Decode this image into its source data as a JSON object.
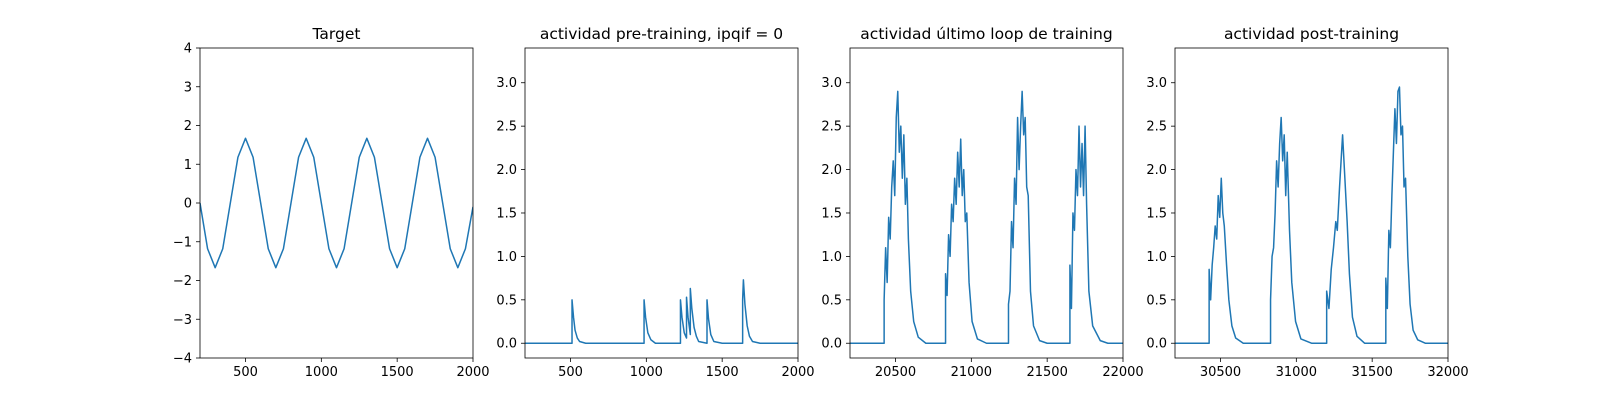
{
  "chart_data": [
    {
      "type": "line",
      "title": "Target",
      "xlabel": "",
      "ylabel": "",
      "xlim": [
        200,
        2000
      ],
      "ylim": [
        -4,
        4
      ],
      "xticks": [
        500,
        1000,
        1500,
        2000
      ],
      "yticks": [
        -4,
        -3,
        -2,
        -1,
        0,
        1,
        2,
        3,
        4
      ],
      "ytick_labels": [
        "−4",
        "−3",
        "−2",
        "−1",
        "0",
        "1",
        "2",
        "3",
        "4"
      ],
      "series": [
        {
          "name": "target",
          "color": "#1f77b4",
          "x": [
            200,
            250,
            300,
            350,
            400,
            450,
            500,
            550,
            600,
            650,
            700,
            750,
            800,
            850,
            900,
            950,
            1000,
            1050,
            1100,
            1150,
            1200,
            1250,
            1300,
            1350,
            1400,
            1450,
            1500,
            1550,
            1600,
            1650,
            1700,
            1750,
            1800,
            1850,
            1900,
            1950,
            2000
          ],
          "y": [
            0,
            -1.18,
            -1.67,
            -1.18,
            0,
            1.18,
            1.67,
            1.18,
            0,
            -1.18,
            -1.67,
            -1.18,
            0,
            1.18,
            1.67,
            1.18,
            0,
            -1.18,
            -1.67,
            -1.18,
            0,
            1.18,
            1.67,
            1.18,
            0,
            -1.18,
            -1.67,
            -1.18,
            0,
            1.18,
            1.67,
            1.18,
            0,
            -1.18,
            -1.67,
            -1.18,
            -0.1
          ]
        }
      ]
    },
    {
      "type": "line",
      "title": "actividad pre-training, ipqif = 0",
      "xlabel": "",
      "ylabel": "",
      "xlim": [
        200,
        2000
      ],
      "ylim": [
        -0.17,
        3.4
      ],
      "xticks": [
        500,
        1000,
        1500,
        2000
      ],
      "yticks": [
        0,
        0.5,
        1,
        1.5,
        2,
        2.5,
        3
      ],
      "ytick_labels": [
        "0.0",
        "0.5",
        "1.0",
        "1.5",
        "2.0",
        "2.5",
        "3.0"
      ],
      "series": [
        {
          "name": "activity",
          "color": "#1f77b4",
          "x": [
            200,
            510,
            510,
            520,
            530,
            545,
            560,
            600,
            985,
            985,
            995,
            1010,
            1030,
            1060,
            1225,
            1225,
            1235,
            1250,
            1265,
            1265,
            1275,
            1290,
            1290,
            1300,
            1315,
            1330,
            1345,
            1400,
            1400,
            1410,
            1425,
            1445,
            1500,
            1635,
            1635,
            1640,
            1650,
            1665,
            1680,
            1700,
            1750,
            2000
          ],
          "y": [
            0,
            0,
            0.5,
            0.3,
            0.15,
            0.06,
            0.02,
            0,
            0,
            0.5,
            0.3,
            0.12,
            0.04,
            0,
            0,
            0.5,
            0.3,
            0.12,
            0.06,
            0.53,
            0.3,
            0.1,
            0.63,
            0.4,
            0.18,
            0.08,
            0.02,
            0,
            0.5,
            0.28,
            0.1,
            0.02,
            0,
            0,
            0.5,
            0.73,
            0.45,
            0.2,
            0.08,
            0.02,
            0,
            0
          ]
        }
      ]
    },
    {
      "type": "line",
      "title": "actividad último loop de training",
      "xlabel": "",
      "ylabel": "",
      "xlim": [
        20200,
        22000
      ],
      "ylim": [
        -0.17,
        3.4
      ],
      "xticks": [
        20500,
        21000,
        21500,
        22000
      ],
      "yticks": [
        0,
        0.5,
        1,
        1.5,
        2,
        2.5,
        3
      ],
      "ytick_labels": [
        "0.0",
        "0.5",
        "1.0",
        "1.5",
        "2.0",
        "2.5",
        "3.0"
      ],
      "series": [
        {
          "name": "activity",
          "color": "#1f77b4",
          "x": [
            20200,
            20425,
            20425,
            20435,
            20445,
            20455,
            20465,
            20475,
            20485,
            20495,
            20505,
            20515,
            20525,
            20535,
            20545,
            20555,
            20565,
            20575,
            20585,
            20600,
            20620,
            20650,
            20700,
            20830,
            20830,
            20840,
            20850,
            20860,
            20870,
            20880,
            20890,
            20900,
            20910,
            20920,
            20930,
            20940,
            20950,
            20960,
            20970,
            20985,
            21005,
            21040,
            21100,
            21245,
            21245,
            21255,
            21265,
            21275,
            21285,
            21295,
            21305,
            21315,
            21325,
            21335,
            21345,
            21355,
            21365,
            21375,
            21390,
            21410,
            21450,
            21500,
            21650,
            21650,
            21660,
            21670,
            21680,
            21690,
            21700,
            21710,
            21720,
            21730,
            21740,
            21750,
            21760,
            21775,
            21800,
            21850,
            21900,
            22000
          ],
          "y": [
            0,
            0,
            0.5,
            1.1,
            0.7,
            1.45,
            1.2,
            1.8,
            2.1,
            1.7,
            2.6,
            2.9,
            2.2,
            2.5,
            1.9,
            2.4,
            1.6,
            1.9,
            1.2,
            0.6,
            0.25,
            0.07,
            0,
            0,
            0.8,
            0.55,
            1.25,
            1.0,
            1.6,
            1.4,
            1.9,
            1.6,
            2.2,
            1.8,
            2.35,
            1.7,
            2.0,
            1.4,
            1.5,
            0.7,
            0.25,
            0.05,
            0,
            0,
            0.45,
            0.6,
            1.4,
            1.1,
            1.9,
            1.6,
            2.6,
            2.0,
            2.5,
            2.9,
            2.4,
            2.6,
            1.8,
            1.7,
            0.6,
            0.2,
            0.03,
            0,
            0,
            0.9,
            0.4,
            1.5,
            1.3,
            2.0,
            1.7,
            2.5,
            1.8,
            2.3,
            1.7,
            2.5,
            1.6,
            0.6,
            0.2,
            0.03,
            0,
            0
          ]
        }
      ]
    },
    {
      "type": "line",
      "title": "actividad post-training",
      "xlabel": "",
      "ylabel": "",
      "xlim": [
        30200,
        32000
      ],
      "ylim": [
        -0.17,
        3.4
      ],
      "xticks": [
        30500,
        31000,
        31500,
        32000
      ],
      "yticks": [
        0,
        0.5,
        1,
        1.5,
        2,
        2.5,
        3
      ],
      "ytick_labels": [
        "0.0",
        "0.5",
        "1.0",
        "1.5",
        "2.0",
        "2.5",
        "3.0"
      ],
      "series": [
        {
          "name": "activity",
          "color": "#1f77b4",
          "x": [
            30200,
            30425,
            30425,
            30435,
            30445,
            30455,
            30465,
            30475,
            30485,
            30495,
            30505,
            30515,
            30525,
            30540,
            30555,
            30575,
            30600,
            30650,
            30830,
            30830,
            30840,
            30850,
            30860,
            30870,
            30880,
            30890,
            30900,
            30910,
            30920,
            30930,
            30940,
            30955,
            30970,
            30995,
            31030,
            31100,
            31200,
            31200,
            31215,
            31230,
            31245,
            31260,
            31270,
            31285,
            31295,
            31305,
            31320,
            31335,
            31350,
            31370,
            31400,
            31450,
            31590,
            31590,
            31600,
            31610,
            31620,
            31630,
            31640,
            31650,
            31660,
            31670,
            31680,
            31690,
            31700,
            31710,
            31720,
            31735,
            31750,
            31770,
            31800,
            31850,
            31900,
            32000
          ],
          "y": [
            0,
            0,
            0.85,
            0.5,
            0.9,
            1.1,
            1.35,
            1.2,
            1.7,
            1.45,
            1.9,
            1.5,
            1.35,
            0.9,
            0.5,
            0.2,
            0.06,
            0,
            0,
            0.5,
            1.0,
            1.1,
            1.5,
            2.1,
            1.8,
            2.3,
            2.6,
            2.1,
            2.4,
            1.7,
            2.2,
            1.3,
            0.7,
            0.25,
            0.05,
            0,
            0,
            0.6,
            0.4,
            0.85,
            1.1,
            1.4,
            1.3,
            1.8,
            2.1,
            2.4,
            1.9,
            1.4,
            0.8,
            0.3,
            0.08,
            0,
            0,
            0.75,
            0.4,
            1.3,
            1.1,
            1.7,
            2.2,
            2.7,
            2.3,
            2.9,
            2.95,
            2.4,
            2.5,
            1.8,
            1.9,
            1.0,
            0.45,
            0.15,
            0.04,
            0,
            0,
            0
          ]
        }
      ]
    }
  ]
}
